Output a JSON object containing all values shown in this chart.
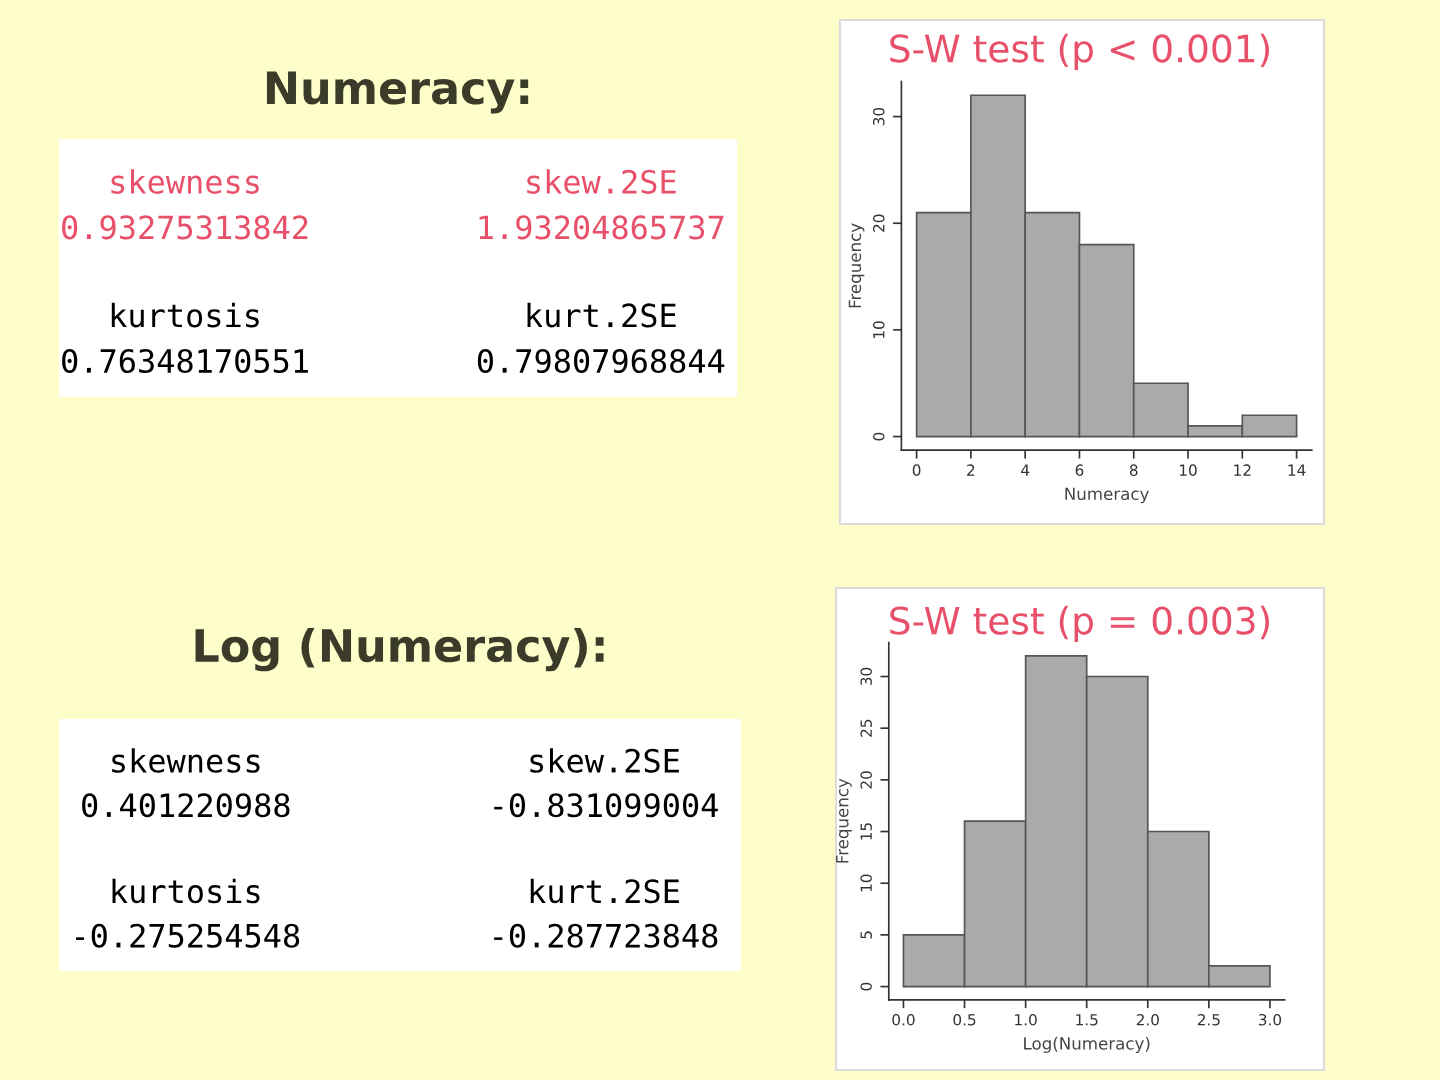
{
  "chart_data": [
    {
      "type": "other",
      "title": "Numeracy:",
      "categories": [
        "skewness",
        "skew.2SE",
        "kurtosis",
        "kurt.2SE"
      ],
      "values": [
        0.93275313842,
        1.93204865737,
        0.76348170551,
        0.79807968844
      ],
      "data_labels": true
    },
    {
      "type": "histogram",
      "title": "S-W test (p < 0.001)",
      "xlabel": "Numeracy",
      "ylabel": "Frequency",
      "bins": [
        0,
        2,
        4,
        6,
        8,
        10,
        12,
        14
      ],
      "values": [
        21,
        32,
        21,
        18,
        5,
        1,
        2
      ],
      "color": "#aaaaaa",
      "xlim": [
        -0.56,
        14.56
      ],
      "ylim": [
        -1.28,
        33.28
      ],
      "xticks": [
        0,
        2,
        4,
        6,
        8,
        10,
        12,
        14
      ],
      "yticks": [
        0,
        10,
        20,
        30
      ]
    },
    {
      "type": "other",
      "title": "Log (Numeracy):",
      "categories": [
        "skewness",
        "skew.2SE",
        "kurtosis",
        "kurt.2SE"
      ],
      "values": [
        0.401220988,
        -0.831099004,
        -0.275254548,
        -0.287723848
      ],
      "data_labels": true
    },
    {
      "type": "histogram",
      "title": "S-W test (p = 0.003)",
      "xlabel": "Log(Numeracy)",
      "ylabel": "Frequency",
      "bins": [
        0,
        0.5,
        1,
        1.5,
        2,
        2.5,
        3
      ],
      "values": [
        5,
        16,
        32,
        30,
        15,
        2
      ],
      "color": "#aaaaaa",
      "xlim": [
        -0.12,
        3.12
      ],
      "ylim": [
        -1.28,
        33.28
      ],
      "xticks": [
        {
          "value": 0,
          "label": "0.0"
        },
        {
          "value": 0.5,
          "label": "0.5"
        },
        {
          "value": 1,
          "label": "1.0"
        },
        {
          "value": 1.5,
          "label": "1.5"
        },
        {
          "value": 2,
          "label": "2.0"
        },
        {
          "value": 2.5,
          "label": "2.5"
        },
        {
          "value": 3,
          "label": "3.0"
        }
      ],
      "yticks": [
        0,
        5,
        10,
        15,
        20,
        25,
        30
      ]
    }
  ]
}
